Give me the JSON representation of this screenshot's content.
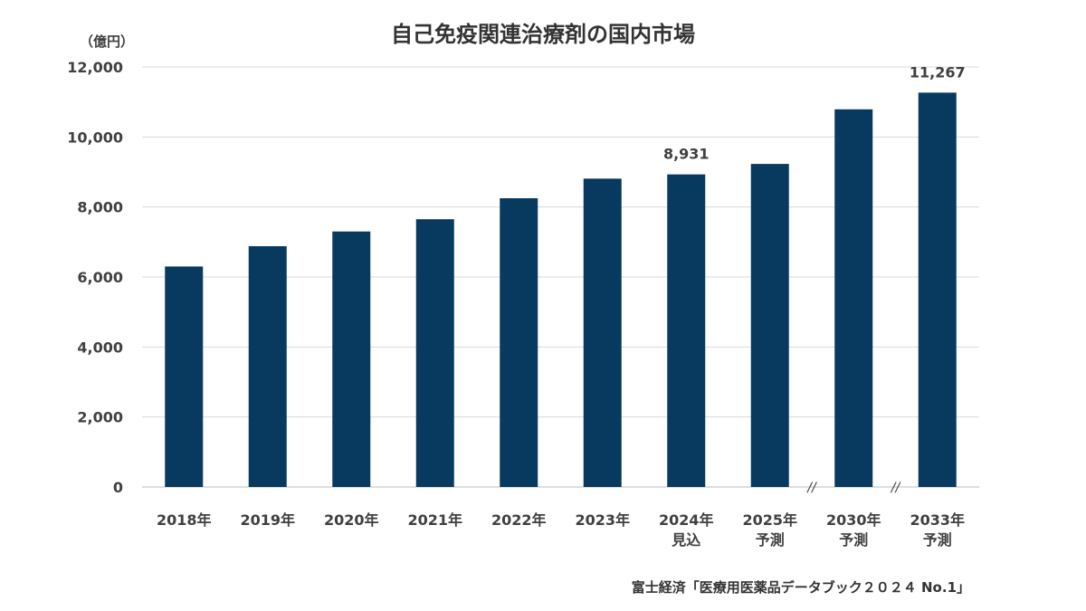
{
  "title": "自己免疫関連治療剤の国内市場",
  "unit_label": "（億円）",
  "source": "富士経済「医療用医薬品データブック２０２４ No.1」",
  "colors": {
    "bar": "#083A60",
    "grid": "#D9D9D9",
    "axis": "#BFBFBF",
    "text": "#404040"
  },
  "chart_data": {
    "type": "bar",
    "title": "自己免疫関連治療剤の国内市場",
    "ylabel": "（億円）",
    "xlabel": "",
    "ylim": [
      0,
      12000
    ],
    "yticks": [
      0,
      2000,
      4000,
      6000,
      8000,
      10000,
      12000
    ],
    "ytick_labels": [
      "0",
      "2,000",
      "4,000",
      "6,000",
      "8,000",
      "10,000",
      "12,000"
    ],
    "grid": true,
    "categories": [
      [
        "2018年"
      ],
      [
        "2019年"
      ],
      [
        "2020年"
      ],
      [
        "2021年"
      ],
      [
        "2022年"
      ],
      [
        "2023年"
      ],
      [
        "2024年",
        "見込"
      ],
      [
        "2025年",
        "予測"
      ],
      [
        "2030年",
        "予測"
      ],
      [
        "2033年",
        "予測"
      ]
    ],
    "values": [
      6300,
      6880,
      7300,
      7650,
      8250,
      8810,
      8931,
      9230,
      10790,
      11267
    ],
    "data_labels": [
      null,
      null,
      null,
      null,
      null,
      null,
      "8,931",
      null,
      null,
      "11,267"
    ],
    "axis_breaks": [
      "//",
      "//"
    ],
    "axis_break_after_index": [
      7,
      8
    ]
  }
}
